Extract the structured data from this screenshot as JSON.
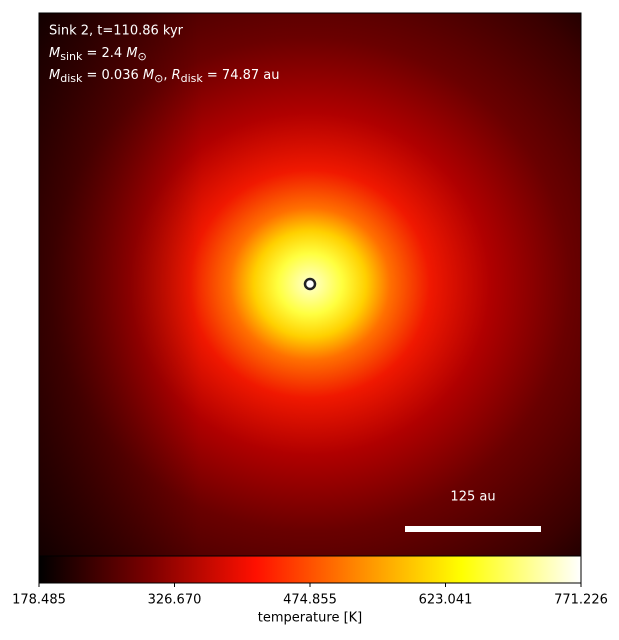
{
  "chart_data": {
    "type": "image",
    "annotation": {
      "line1": "Sink 2, t=110.86 kyr",
      "line2": {
        "symbol": "M",
        "subscript": "sink",
        "text": " = 2.4 ",
        "unit": "M",
        "unit_subscript": "⊙"
      },
      "line3": {
        "symbol": "M",
        "subscript": "disk",
        "text": " = 0.036 ",
        "unit": "M",
        "unit_subscript": "⊙",
        "sep": ", ",
        "symbol2": "R",
        "subscript2": "disk",
        "text2": " = 74.87 au"
      }
    },
    "scalebar_label": "125 au",
    "colorbar": {
      "label": "temperature [K]",
      "clim": [
        178.485,
        771.226
      ],
      "ticks": [
        178.485,
        {
          "value": 326.67,
          "label": "326.670"
        },
        474.855,
        623.041,
        771.226
      ]
    }
  }
}
